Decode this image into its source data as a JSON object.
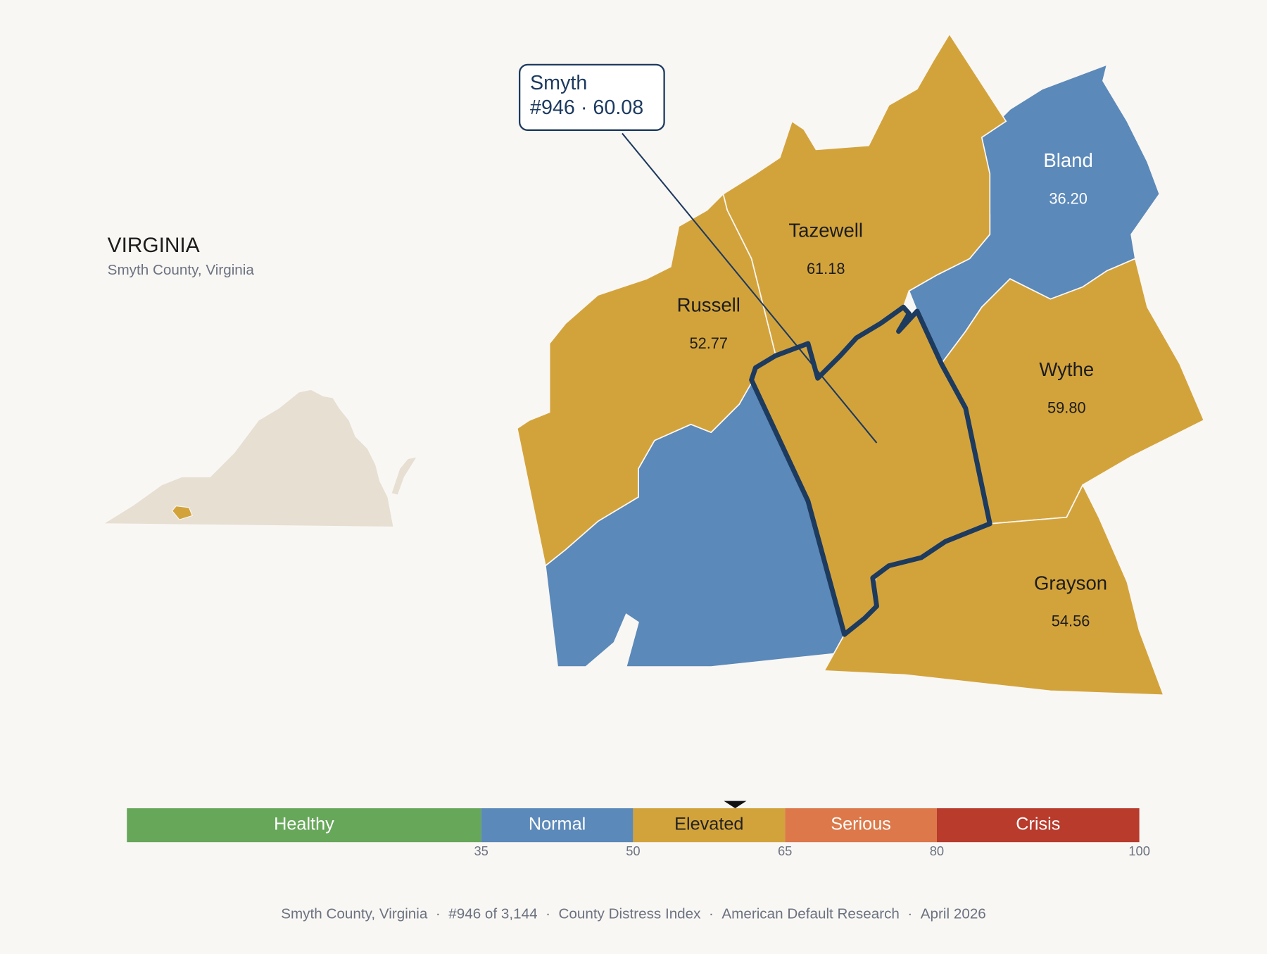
{
  "header": {
    "title": "VIRGINIA",
    "subtitle": "Smyth County, Virginia"
  },
  "callout": {
    "name": "Smyth",
    "rank": "#946",
    "separator": "·",
    "score": 60.08
  },
  "counties": [
    {
      "name": "Bland",
      "score": 36.2,
      "score_label": "36.20"
    },
    {
      "name": "Tazewell",
      "score": 61.18,
      "score_label": "61.18"
    },
    {
      "name": "Russell",
      "score": 52.77,
      "score_label": "52.77"
    },
    {
      "name": "Wythe",
      "score": 59.8,
      "score_label": "59.80"
    },
    {
      "name": "Grayson",
      "score": 54.56,
      "score_label": "54.56"
    }
  ],
  "legend": {
    "range": [
      0,
      100
    ],
    "ticks": [
      35,
      50,
      65,
      80,
      100
    ],
    "bands": [
      {
        "label": "Healthy",
        "color": "#67a75a",
        "text_color": "#ffffff"
      },
      {
        "label": "Normal",
        "color": "#5b89b9",
        "text_color": "#ffffff"
      },
      {
        "label": "Elevated",
        "color": "#d3a33b",
        "text_color": "#222222"
      },
      {
        "label": "Serious",
        "color": "#dc7849",
        "text_color": "#ffffff"
      },
      {
        "label": "Crisis",
        "color": "#b83b2c",
        "text_color": "#ffffff"
      }
    ]
  },
  "footer": {
    "separator": "·",
    "parts": [
      "Smyth County, Virginia",
      "#946 of 3,144",
      "County Distress Index",
      "American Default Research",
      "April 2026"
    ]
  }
}
